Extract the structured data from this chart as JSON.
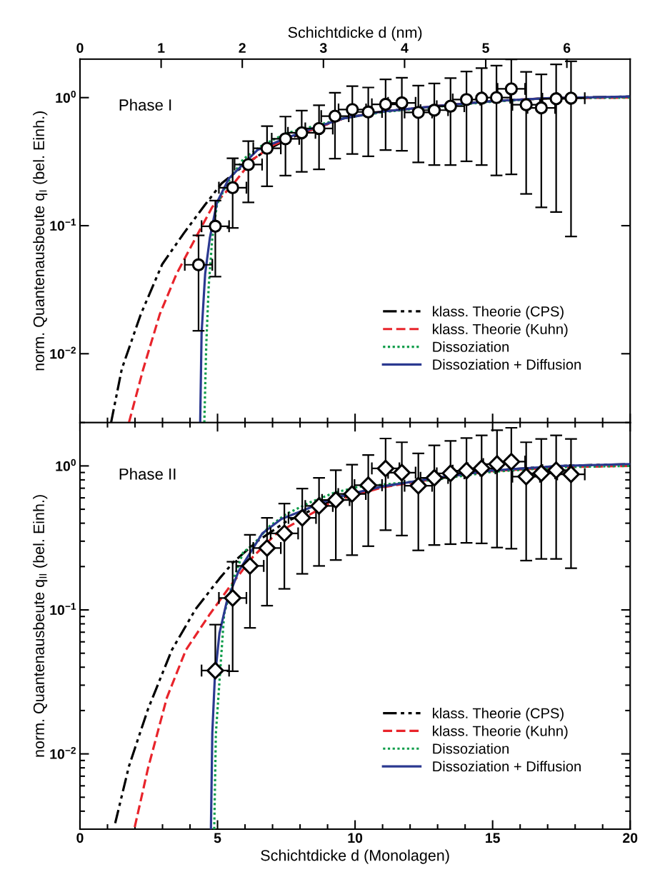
{
  "chart_data": [
    {
      "type": "line",
      "ylabel": "norm. Quantenausbeute q$_{I}$ (bel. Einh.)",
      "x2label": "Schichtdicke d (nm)",
      "xlim": [
        0,
        20
      ],
      "xticks": [
        0,
        5,
        10,
        15,
        20
      ],
      "x2lim": [
        0,
        6.78
      ],
      "x2ticks": [
        0,
        1,
        2,
        3,
        4,
        5,
        6
      ],
      "ylim": [
        0.0029,
        2
      ],
      "yticks": [
        {
          "value": 0.01,
          "label": "10$^{−2}$"
        },
        {
          "value": 0.1,
          "label": "10$^{−1}$"
        },
        {
          "value": 1,
          "label": "10$^{0}$"
        }
      ],
      "log": "y",
      "tick_labels": "y",
      "legend": "bottom right",
      "annotations": [
        "Phase I"
      ],
      "series": [
        {
          "name": "klass. Theorie (CPS)",
          "color": "#000000",
          "line_style": "dashdotdot",
          "x": [
            1.13,
            1.52,
            2.21,
            2.99,
            3.77,
            4.55,
            5.15,
            6.0,
            6.8,
            7.5,
            8.5,
            9.6,
            11,
            13,
            15,
            17,
            20
          ],
          "values": [
            0.0029,
            0.0076,
            0.0203,
            0.05,
            0.087,
            0.146,
            0.214,
            0.3,
            0.39,
            0.47,
            0.57,
            0.69,
            0.78,
            0.86,
            0.94,
            0.99,
            1.02
          ]
        },
        {
          "name": "klass. Theorie (Kuhn)",
          "color": "#e8242b",
          "line_style": "dashed",
          "x": [
            1.78,
            2.3,
            2.9,
            3.51,
            4.2,
            4.81,
            5.59,
            6.28,
            7.06,
            8.5,
            9.6,
            11,
            13,
            15,
            17,
            20
          ],
          "values": [
            0.0029,
            0.0076,
            0.0203,
            0.042,
            0.08,
            0.14,
            0.214,
            0.329,
            0.43,
            0.57,
            0.69,
            0.78,
            0.86,
            0.94,
            0.99,
            1.0
          ]
        },
        {
          "name": "Dissoziation",
          "color": "#0f9d4a",
          "line_style": "dotted",
          "x": [
            4.52,
            4.59,
            4.68,
            4.81,
            4.98,
            5.33,
            5.93,
            6.63,
            7.49,
            8.5,
            9.6,
            11,
            13,
            15,
            17,
            20
          ],
          "values": [
            0.0029,
            0.0117,
            0.034,
            0.08,
            0.146,
            0.21,
            0.33,
            0.425,
            0.526,
            0.6,
            0.69,
            0.77,
            0.85,
            0.93,
            0.99,
            1.0
          ]
        },
        {
          "name": "Dissoziation + Diffusion",
          "color": "#2b3990",
          "line_style": "solid",
          "x": [
            4.37,
            4.42,
            4.55,
            4.72,
            4.98,
            5.41,
            5.76,
            6.45,
            7.47,
            8.5,
            9.6,
            11,
            13,
            15,
            17,
            20
          ],
          "values": [
            0.0029,
            0.0144,
            0.042,
            0.08,
            0.152,
            0.233,
            0.277,
            0.39,
            0.48,
            0.58,
            0.69,
            0.78,
            0.86,
            0.94,
            0.99,
            1.02
          ]
        },
        {
          "type": "scatter",
          "color": "#000000",
          "marker": "circle",
          "x": [
            4.31,
            4.92,
            5.55,
            6.12,
            6.8,
            7.47,
            8.06,
            8.69,
            9.27,
            9.9,
            10.48,
            11.11,
            11.7,
            12.3,
            12.88,
            13.47,
            14.05,
            14.6,
            15.14,
            15.68,
            16.22,
            16.77,
            17.31,
            17.85
          ],
          "values": [
            0.0495,
            0.099,
            0.198,
            0.3,
            0.402,
            0.477,
            0.531,
            0.574,
            0.716,
            0.807,
            0.773,
            0.887,
            0.91,
            0.767,
            0.798,
            0.857,
            0.967,
            0.99,
            1.0,
            1.17,
            0.879,
            0.832,
            0.98,
            0.99
          ],
          "errors": [
            [
              0.0151,
              0.084
            ],
            [
              0.04,
              0.157
            ],
            [
              0.096,
              0.336
            ],
            [
              0.152,
              0.457
            ],
            [
              0.203,
              0.598
            ],
            [
              0.246,
              0.711
            ],
            [
              0.263,
              0.791
            ],
            [
              0.275,
              0.873
            ],
            [
              0.334,
              1.09
            ],
            [
              0.363,
              1.23
            ],
            [
              0.348,
              1.2
            ],
            [
              0.389,
              1.39
            ],
            [
              0.385,
              1.43
            ],
            [
              0.312,
              1.24
            ],
            [
              0.297,
              1.29
            ],
            [
              0.297,
              1.42
            ],
            [
              0.318,
              1.6
            ],
            [
              0.297,
              1.7
            ],
            [
              0.247,
              1.78
            ],
            [
              0.252,
              1.99
            ],
            [
              0.177,
              1.59
            ],
            [
              0.139,
              1.52
            ],
            [
              0.128,
              1.82
            ],
            [
              0.0824,
              1.92
            ]
          ],
          "xerrors": [
            0.5,
            0.5,
            0.5,
            0.5,
            0.5,
            0.5,
            0.5,
            0.5,
            0.5,
            0.5,
            0.5,
            0.5,
            0.5,
            0.5,
            0.5,
            0.5,
            0.5,
            null,
            0.5,
            0.5,
            0.5,
            0.5,
            0.5,
            0.5
          ]
        }
      ]
    },
    {
      "type": "line",
      "xlabel": "Schichtdicke d (Monolagen)",
      "ylabel": "norm. Quantenausbeute q$_{II}$ (bel. Einh.)",
      "xlim": [
        0,
        20
      ],
      "xticks": [
        0,
        5,
        10,
        15,
        20
      ],
      "ylim": [
        0.003,
        2
      ],
      "yticks": [
        {
          "value": 0.01,
          "label": "10$^{−2}$"
        },
        {
          "value": 0.1,
          "label": "10$^{−1}$"
        },
        {
          "value": 1,
          "label": "10$^{0}$"
        }
      ],
      "log": "y",
      "legend": "bottom right",
      "annotations": [
        "Phase II"
      ],
      "series": [
        {
          "name": "klass. Theorie (CPS)",
          "color": "#000000",
          "line_style": "dashdotdot",
          "x": [
            1.28,
            1.78,
            2.47,
            3.34,
            4.2,
            5.07,
            5.59,
            6.45,
            7.49,
            9.23,
            11,
            12.86,
            14.98,
            17.5,
            20
          ],
          "values": [
            0.0033,
            0.0082,
            0.0204,
            0.0527,
            0.101,
            0.165,
            0.216,
            0.3,
            0.41,
            0.58,
            0.72,
            0.82,
            0.93,
            1.0,
            1.03
          ]
        },
        {
          "name": "klass. Theorie (Kuhn)",
          "color": "#e8242b",
          "line_style": "dashed",
          "x": [
            1.99,
            2.47,
            3.16,
            3.85,
            4.72,
            5.41,
            6.28,
            7.15,
            9.23,
            11,
            12.86,
            14.98,
            17.5,
            20
          ],
          "values": [
            0.0031,
            0.0079,
            0.0246,
            0.0527,
            0.0934,
            0.142,
            0.233,
            0.34,
            0.57,
            0.71,
            0.81,
            0.92,
            0.98,
            1.0
          ]
        },
        {
          "name": "Dissoziation",
          "color": "#0f9d4a",
          "line_style": "dotted",
          "x": [
            4.88,
            4.94,
            5.24,
            5.59,
            5.93,
            6.28,
            6.89,
            7.49,
            8.36,
            9.23,
            10.1,
            12.86,
            14.98,
            17.5,
            20
          ],
          "values": [
            0.003,
            0.0139,
            0.0934,
            0.165,
            0.251,
            0.282,
            0.381,
            0.462,
            0.558,
            0.65,
            0.715,
            0.8,
            0.91,
            0.98,
            1.0
          ]
        },
        {
          "name": "Dissoziation + Diffusion",
          "color": "#2b3990",
          "line_style": "solid",
          "x": [
            4.76,
            4.81,
            4.9,
            5.07,
            5.33,
            5.76,
            5.93,
            6.63,
            7.32,
            8.19,
            9.23,
            11,
            12.86,
            14.98,
            17.5,
            20
          ],
          "values": [
            0.003,
            0.0139,
            0.0334,
            0.0689,
            0.113,
            0.185,
            0.208,
            0.34,
            0.428,
            0.498,
            0.6,
            0.72,
            0.82,
            0.93,
            1.0,
            1.03
          ]
        },
        {
          "type": "scatter",
          "color": "#000000",
          "marker": "diamond",
          "x": [
            4.92,
            5.55,
            6.18,
            6.8,
            7.43,
            8.08,
            8.69,
            9.3,
            9.89,
            10.48,
            11.11,
            11.7,
            12.3,
            12.88,
            13.47,
            14.05,
            14.6,
            15.16,
            15.68,
            16.22,
            16.77,
            17.31,
            17.85
          ],
          "values": [
            0.0379,
            0.121,
            0.202,
            0.269,
            0.34,
            0.436,
            0.527,
            0.58,
            0.638,
            0.734,
            0.96,
            0.898,
            0.729,
            0.826,
            0.888,
            0.927,
            0.962,
            1.03,
            1.07,
            0.843,
            0.888,
            0.933,
            0.875
          ],
          "errors": [
            [
              0.0379,
              0.079
            ],
            [
              0.0375,
              0.216
            ],
            [
              0.075,
              0.332
            ],
            [
              0.107,
              0.436
            ],
            [
              0.14,
              0.548
            ],
            [
              0.178,
              0.696
            ],
            [
              0.202,
              0.826
            ],
            [
              0.222,
              0.934
            ],
            [
              0.24,
              1.02
            ],
            [
              0.277,
              1.19
            ],
            [
              0.358,
              1.55
            ],
            [
              0.328,
              1.46
            ],
            [
              0.259,
              1.22
            ],
            [
              0.282,
              1.39
            ],
            [
              0.286,
              1.49
            ],
            [
              0.292,
              1.56
            ],
            [
              0.29,
              1.63
            ],
            [
              0.271,
              1.77
            ],
            [
              0.266,
              1.84
            ],
            [
              0.22,
              1.46
            ],
            [
              0.226,
              1.54
            ],
            [
              0.226,
              1.63
            ],
            [
              0.195,
              1.54
            ]
          ],
          "xerrors": [
            0.5,
            0.5,
            0.5,
            0.5,
            0.5,
            0.5,
            0.5,
            0.5,
            0.5,
            0.5,
            0.5,
            0.5,
            0.5,
            0.5,
            0.5,
            0.5,
            0.5,
            0.5,
            0.5,
            0.5,
            0.5,
            0.5,
            0.5
          ]
        }
      ]
    }
  ]
}
